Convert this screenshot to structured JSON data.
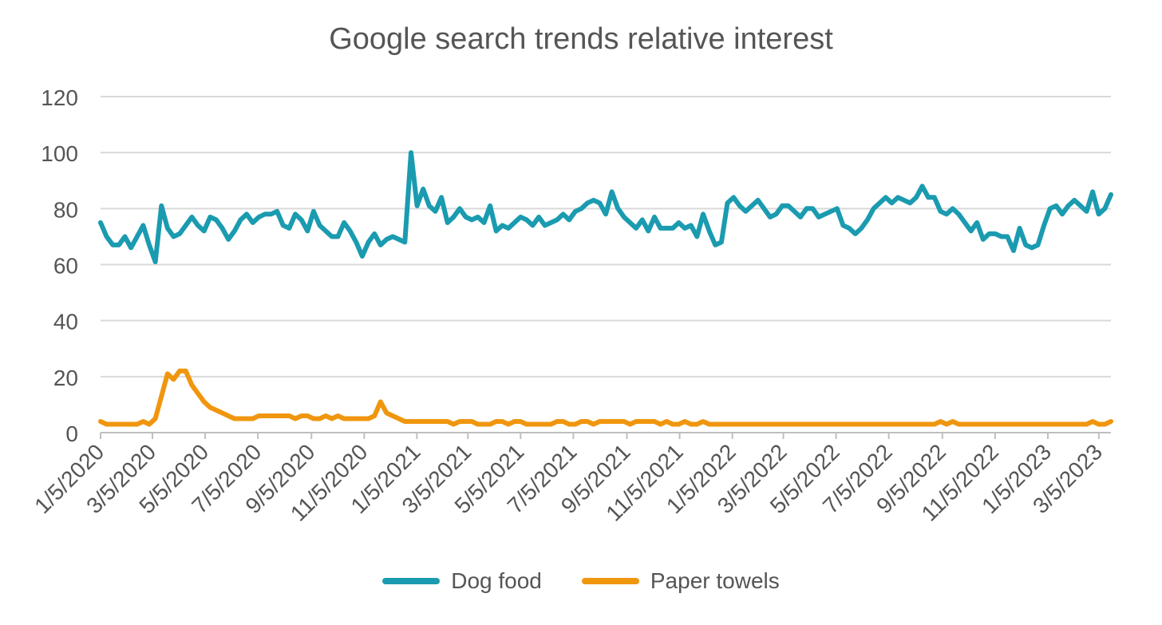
{
  "chart_data": {
    "type": "line",
    "title": "Google search trends relative interest",
    "xlabel": "",
    "ylabel": "",
    "ylim": [
      0,
      120
    ],
    "yticks": [
      "0",
      "20",
      "40",
      "60",
      "80",
      "100",
      "120"
    ],
    "x_start": "1/5/2020",
    "x_end": "3/19/2023",
    "xtick_labels": [
      "1/5/2020",
      "3/5/2020",
      "5/5/2020",
      "7/5/2020",
      "9/5/2020",
      "11/5/2020",
      "1/5/2021",
      "3/5/2021",
      "5/5/2021",
      "7/5/2021",
      "9/5/2021",
      "11/5/2021",
      "1/5/2022",
      "3/5/2022",
      "5/5/2022",
      "7/5/2022",
      "9/5/2022",
      "11/5/2022",
      "1/5/2023",
      "3/5/2023"
    ],
    "grid": true,
    "legend_position": "bottom",
    "series": [
      {
        "name": "Dog food",
        "color": "#1a9bb0",
        "values": [
          75,
          70,
          67,
          67,
          70,
          66,
          70,
          74,
          67,
          61,
          81,
          73,
          70,
          71,
          74,
          77,
          74,
          72,
          77,
          76,
          73,
          69,
          72,
          76,
          78,
          75,
          77,
          78,
          78,
          79,
          74,
          73,
          78,
          76,
          72,
          79,
          74,
          72,
          70,
          70,
          75,
          72,
          68,
          63,
          68,
          71,
          67,
          69,
          70,
          69,
          68,
          100,
          81,
          87,
          81,
          79,
          84,
          75,
          77,
          80,
          77,
          76,
          77,
          75,
          81,
          72,
          74,
          73,
          75,
          77,
          76,
          74,
          77,
          74,
          75,
          76,
          78,
          76,
          79,
          80,
          82,
          83,
          82,
          78,
          86,
          80,
          77,
          75,
          73,
          76,
          72,
          77,
          73,
          73,
          73,
          75,
          73,
          74,
          70,
          78,
          72,
          67,
          68,
          82,
          84,
          81,
          79,
          81,
          83,
          80,
          77,
          78,
          81,
          81,
          79,
          77,
          80,
          80,
          77,
          78,
          79,
          80,
          74,
          73,
          71,
          73,
          76,
          80,
          82,
          84,
          82,
          84,
          83,
          82,
          84,
          88,
          84,
          84,
          79,
          78,
          80,
          78,
          75,
          72,
          75,
          69,
          71,
          71,
          70,
          70,
          65,
          73,
          67,
          66,
          67,
          74,
          80,
          81,
          78,
          81,
          83,
          81,
          79,
          86,
          78,
          80,
          85
        ]
      },
      {
        "name": "Paper towels",
        "color": "#f0960e",
        "values": [
          4,
          3,
          3,
          3,
          3,
          3,
          3,
          4,
          3,
          5,
          13,
          21,
          19,
          22,
          22,
          17,
          14,
          11,
          9,
          8,
          7,
          6,
          5,
          5,
          5,
          5,
          6,
          6,
          6,
          6,
          6,
          6,
          5,
          6,
          6,
          5,
          5,
          6,
          5,
          6,
          5,
          5,
          5,
          5,
          5,
          6,
          11,
          7,
          6,
          5,
          4,
          4,
          4,
          4,
          4,
          4,
          4,
          4,
          3,
          4,
          4,
          4,
          3,
          3,
          3,
          4,
          4,
          3,
          4,
          4,
          3,
          3,
          3,
          3,
          3,
          4,
          4,
          3,
          3,
          4,
          4,
          3,
          4,
          4,
          4,
          4,
          4,
          3,
          4,
          4,
          4,
          4,
          3,
          4,
          3,
          3,
          4,
          3,
          3,
          4,
          3,
          3,
          3,
          3,
          3,
          3,
          3,
          3,
          3,
          3,
          3,
          3,
          3,
          3,
          3,
          3,
          3,
          3,
          3,
          3,
          3,
          3,
          3,
          3,
          3,
          3,
          3,
          3,
          3,
          3,
          3,
          3,
          3,
          3,
          3,
          3,
          3,
          3,
          4,
          3,
          4,
          3,
          3,
          3,
          3,
          3,
          3,
          3,
          3,
          3,
          3,
          3,
          3,
          3,
          3,
          3,
          3,
          3,
          3,
          3,
          3,
          3,
          3,
          4,
          3,
          3,
          4
        ]
      }
    ]
  }
}
